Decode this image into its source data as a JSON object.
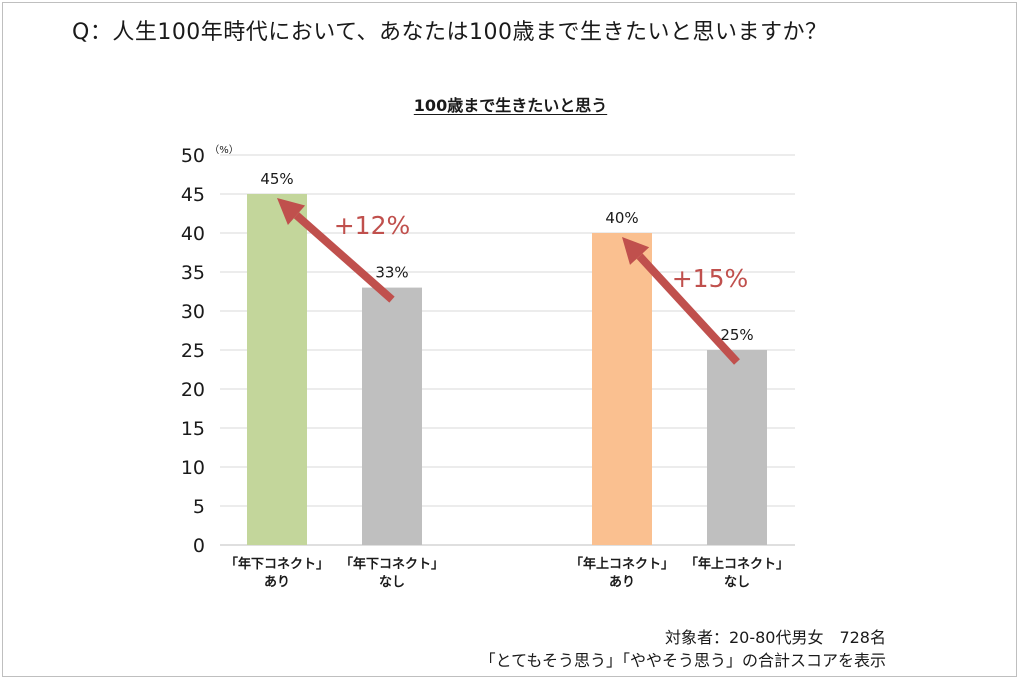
{
  "question": "Q：人生100年時代において、あなたは100歳まで生きたいと思いますか？",
  "footnote": {
    "line1": "対象者：20-80代男女　728名",
    "line2": "「とてもそう思う」「ややそう思う」の合計スコアを表示"
  },
  "chart_data": {
    "type": "bar",
    "title": "100歳まで生きたいと思う",
    "ylabel": "（%）",
    "xlabel": "",
    "ylim": [
      0,
      50
    ],
    "ytick_step": 5,
    "grid": true,
    "categories": [
      [
        "「年下コネクト」",
        "あり"
      ],
      [
        "「年下コネクト」",
        "なし"
      ],
      [
        "「年上コネクト」",
        "あり"
      ],
      [
        "「年上コネクト」",
        "なし"
      ]
    ],
    "values": [
      45,
      33,
      40,
      25
    ],
    "value_labels": [
      "45%",
      "33%",
      "40%",
      "25%"
    ],
    "bar_colors": [
      "#c3d69b",
      "#bfbfbf",
      "#fac090",
      "#bfbfbf"
    ],
    "annotations": [
      {
        "text": "+12%",
        "from_bar": 1,
        "to_bar": 0,
        "color": "#c0504d"
      },
      {
        "text": "+15%",
        "from_bar": 3,
        "to_bar": 2,
        "color": "#c0504d"
      }
    ]
  }
}
